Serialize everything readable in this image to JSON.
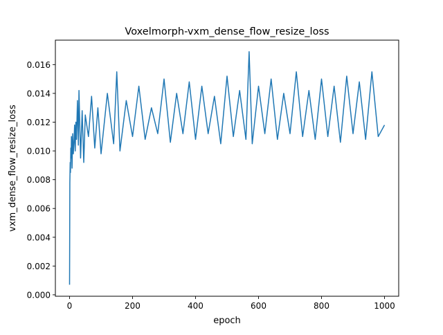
{
  "chart_data": {
    "type": "line",
    "title": "Voxelmorph-vxm_dense_flow_resize_loss",
    "xlabel": "epoch",
    "ylabel": "vxm_dense_flow_resize_loss",
    "xlim": [
      -45,
      1045
    ],
    "ylim": [
      -0.0001,
      0.0177
    ],
    "grid": false,
    "legend": "none",
    "x_ticks": [
      0,
      200,
      400,
      600,
      800,
      1000
    ],
    "x_tick_labels": [
      "0",
      "200",
      "400",
      "600",
      "800",
      "1000"
    ],
    "y_ticks": [
      0.0,
      0.002,
      0.004,
      0.006,
      0.008,
      0.01,
      0.012,
      0.014,
      0.016
    ],
    "y_tick_labels": [
      "0.000",
      "0.002",
      "0.004",
      "0.006",
      "0.008",
      "0.010",
      "0.012",
      "0.014",
      "0.016"
    ],
    "series": [
      {
        "color": "#1f77b4",
        "x": [
          0,
          1,
          2,
          3,
          4,
          5,
          6,
          8,
          10,
          12,
          14,
          16,
          18,
          20,
          22,
          25,
          28,
          30,
          35,
          40,
          45,
          50,
          60,
          70,
          80,
          90,
          100,
          120,
          140,
          150,
          160,
          180,
          200,
          220,
          240,
          260,
          280,
          300,
          320,
          340,
          360,
          380,
          400,
          420,
          440,
          460,
          480,
          500,
          520,
          540,
          560,
          570,
          580,
          600,
          620,
          640,
          660,
          680,
          700,
          720,
          740,
          760,
          780,
          800,
          820,
          840,
          860,
          880,
          900,
          920,
          940,
          960,
          980,
          1000
        ],
        "y": [
          0.0007,
          0.0078,
          0.0092,
          0.0085,
          0.0102,
          0.0095,
          0.011,
          0.0088,
          0.0112,
          0.0098,
          0.0105,
          0.0118,
          0.01,
          0.012,
          0.0108,
          0.0135,
          0.0104,
          0.0142,
          0.0095,
          0.0128,
          0.0092,
          0.0125,
          0.011,
          0.0138,
          0.0102,
          0.013,
          0.0098,
          0.014,
          0.0105,
          0.0155,
          0.01,
          0.0135,
          0.011,
          0.0145,
          0.0108,
          0.013,
          0.0112,
          0.015,
          0.0106,
          0.014,
          0.0112,
          0.0148,
          0.0108,
          0.0145,
          0.0112,
          0.0138,
          0.0105,
          0.0152,
          0.011,
          0.0142,
          0.0108,
          0.0169,
          0.0105,
          0.0145,
          0.0112,
          0.015,
          0.0108,
          0.014,
          0.0112,
          0.0155,
          0.011,
          0.0142,
          0.0108,
          0.015,
          0.011,
          0.0145,
          0.0106,
          0.0152,
          0.0112,
          0.0148,
          0.0108,
          0.0155,
          0.011,
          0.0118
        ]
      }
    ]
  }
}
